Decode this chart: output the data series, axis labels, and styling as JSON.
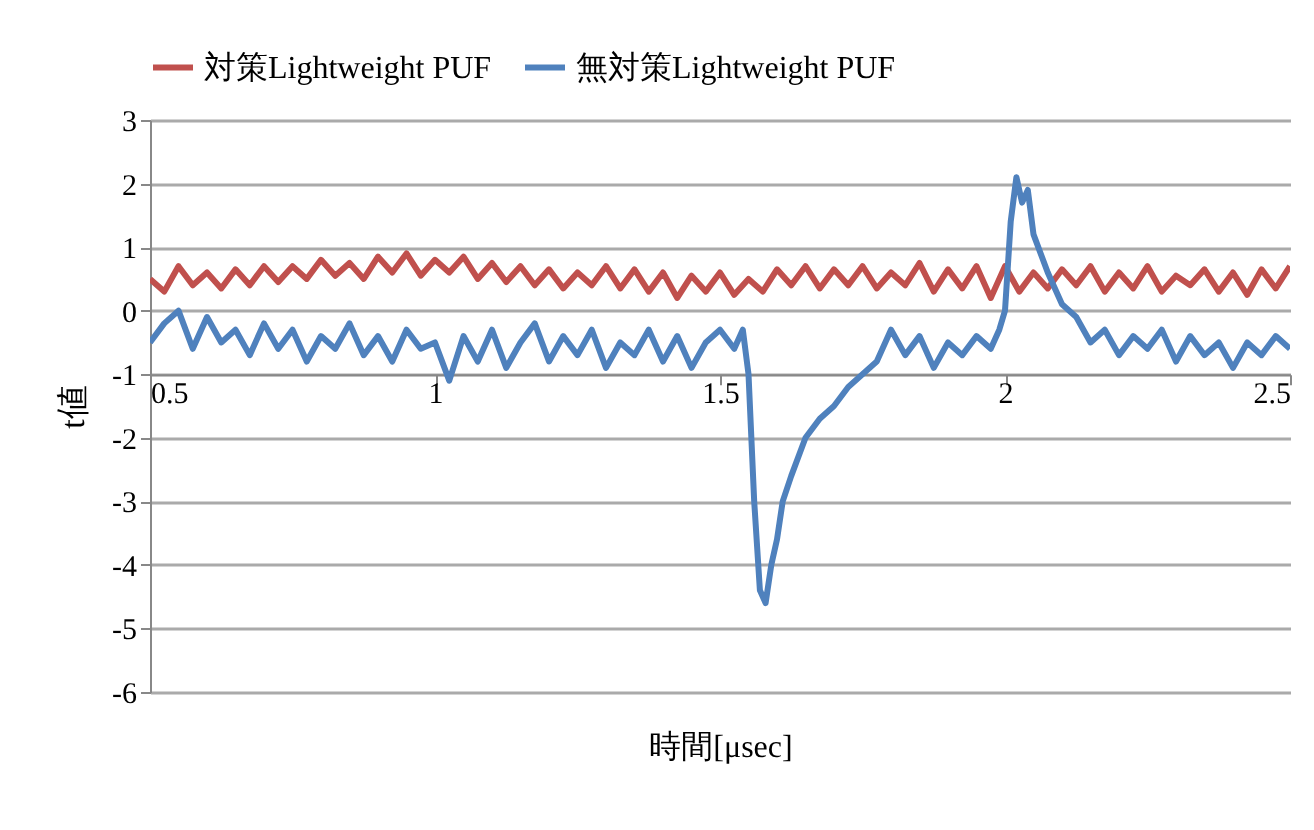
{
  "chart_data": {
    "type": "line",
    "xlabel": "時間[μsec]",
    "ylabel": "t値",
    "xlim": [
      0.5,
      2.5
    ],
    "xticks": [
      0.5,
      1,
      1.5,
      2,
      2.5
    ],
    "ylim": [
      -6,
      3
    ],
    "yticks": [
      -6,
      -5,
      -4,
      -3,
      -2,
      -1,
      0,
      1,
      2,
      3
    ],
    "grid": "y",
    "legend": "top",
    "marker": "none",
    "line_style": "solid",
    "series": [
      {
        "name": "対策Lightweight PUF",
        "color": "#c0504d",
        "x": [
          0.5,
          0.525,
          0.55,
          0.575,
          0.6,
          0.625,
          0.65,
          0.675,
          0.7,
          0.725,
          0.75,
          0.775,
          0.8,
          0.825,
          0.85,
          0.875,
          0.9,
          0.925,
          0.95,
          0.975,
          1.0,
          1.025,
          1.05,
          1.075,
          1.1,
          1.125,
          1.15,
          1.175,
          1.2,
          1.225,
          1.25,
          1.275,
          1.3,
          1.325,
          1.35,
          1.375,
          1.4,
          1.425,
          1.45,
          1.475,
          1.5,
          1.525,
          1.55,
          1.575,
          1.6,
          1.625,
          1.65,
          1.675,
          1.7,
          1.725,
          1.75,
          1.775,
          1.8,
          1.825,
          1.85,
          1.875,
          1.9,
          1.925,
          1.95,
          1.975,
          2.0,
          2.025,
          2.05,
          2.075,
          2.1,
          2.125,
          2.15,
          2.175,
          2.2,
          2.225,
          2.25,
          2.275,
          2.3,
          2.325,
          2.35,
          2.375,
          2.4,
          2.425,
          2.45,
          2.475,
          2.5
        ],
        "values": [
          0.5,
          0.3,
          0.7,
          0.4,
          0.6,
          0.35,
          0.65,
          0.4,
          0.7,
          0.45,
          0.7,
          0.5,
          0.8,
          0.55,
          0.75,
          0.5,
          0.85,
          0.6,
          0.9,
          0.55,
          0.8,
          0.6,
          0.85,
          0.5,
          0.75,
          0.45,
          0.7,
          0.4,
          0.65,
          0.35,
          0.6,
          0.4,
          0.7,
          0.35,
          0.65,
          0.3,
          0.6,
          0.2,
          0.55,
          0.3,
          0.6,
          0.25,
          0.5,
          0.3,
          0.65,
          0.4,
          0.7,
          0.35,
          0.65,
          0.4,
          0.7,
          0.35,
          0.6,
          0.4,
          0.75,
          0.3,
          0.65,
          0.35,
          0.7,
          0.2,
          0.7,
          0.3,
          0.6,
          0.35,
          0.65,
          0.4,
          0.7,
          0.3,
          0.6,
          0.35,
          0.7,
          0.3,
          0.55,
          0.4,
          0.65,
          0.3,
          0.6,
          0.25,
          0.65,
          0.35,
          0.7
        ]
      },
      {
        "name": "無対策Lightweight PUF",
        "color": "#4f81bd",
        "x": [
          0.5,
          0.525,
          0.55,
          0.575,
          0.6,
          0.625,
          0.65,
          0.675,
          0.7,
          0.725,
          0.75,
          0.775,
          0.8,
          0.825,
          0.85,
          0.875,
          0.9,
          0.925,
          0.95,
          0.975,
          1.0,
          1.025,
          1.05,
          1.075,
          1.1,
          1.125,
          1.15,
          1.175,
          1.2,
          1.225,
          1.25,
          1.275,
          1.3,
          1.325,
          1.35,
          1.375,
          1.4,
          1.425,
          1.45,
          1.475,
          1.5,
          1.525,
          1.54,
          1.55,
          1.56,
          1.57,
          1.58,
          1.59,
          1.6,
          1.61,
          1.625,
          1.65,
          1.675,
          1.7,
          1.725,
          1.75,
          1.775,
          1.8,
          1.825,
          1.85,
          1.875,
          1.9,
          1.925,
          1.95,
          1.975,
          1.99,
          2.0,
          2.01,
          2.02,
          2.03,
          2.04,
          2.05,
          2.075,
          2.1,
          2.125,
          2.15,
          2.175,
          2.2,
          2.225,
          2.25,
          2.275,
          2.3,
          2.325,
          2.35,
          2.375,
          2.4,
          2.425,
          2.45,
          2.475,
          2.5
        ],
        "values": [
          -0.5,
          -0.2,
          0.0,
          -0.6,
          -0.1,
          -0.5,
          -0.3,
          -0.7,
          -0.2,
          -0.6,
          -0.3,
          -0.8,
          -0.4,
          -0.6,
          -0.2,
          -0.7,
          -0.4,
          -0.8,
          -0.3,
          -0.6,
          -0.5,
          -1.1,
          -0.4,
          -0.8,
          -0.3,
          -0.9,
          -0.5,
          -0.2,
          -0.8,
          -0.4,
          -0.7,
          -0.3,
          -0.9,
          -0.5,
          -0.7,
          -0.3,
          -0.8,
          -0.4,
          -0.9,
          -0.5,
          -0.3,
          -0.6,
          -0.3,
          -1.0,
          -3.0,
          -4.4,
          -4.6,
          -4.0,
          -3.6,
          -3.0,
          -2.6,
          -2.0,
          -1.7,
          -1.5,
          -1.2,
          -1.0,
          -0.8,
          -0.3,
          -0.7,
          -0.4,
          -0.9,
          -0.5,
          -0.7,
          -0.4,
          -0.6,
          -0.3,
          0.0,
          1.4,
          2.1,
          1.7,
          1.9,
          1.2,
          0.6,
          0.1,
          -0.1,
          -0.5,
          -0.3,
          -0.7,
          -0.4,
          -0.6,
          -0.3,
          -0.8,
          -0.4,
          -0.7,
          -0.5,
          -0.9,
          -0.5,
          -0.7,
          -0.4,
          -0.6
        ]
      }
    ]
  }
}
